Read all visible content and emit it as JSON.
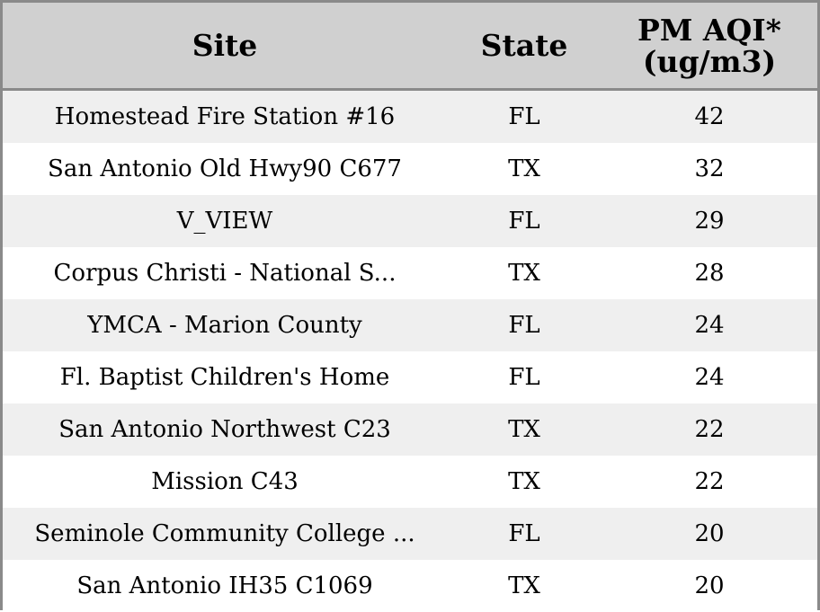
{
  "chart_data": {
    "type": "table",
    "columns": [
      "Site",
      "State",
      "PM AQI*",
      "(ug/m3)"
    ],
    "rows": [
      [
        "Homestead Fire Station #16",
        "FL",
        "42"
      ],
      [
        "San Antonio Old Hwy90 C677",
        "TX",
        "32"
      ],
      [
        "V_VIEW",
        "FL",
        "29"
      ],
      [
        "Corpus Christi - National S...",
        "TX",
        "28"
      ],
      [
        "YMCA - Marion County",
        "FL",
        "24"
      ],
      [
        "Fl. Baptist Children's Home",
        "FL",
        "24"
      ],
      [
        "San Antonio Northwest C23",
        "TX",
        "22"
      ],
      [
        "Mission C43",
        "TX",
        "22"
      ],
      [
        "Seminole Community College ...",
        "FL",
        "20"
      ],
      [
        "San Antonio IH35 C1069",
        "TX",
        "20"
      ]
    ]
  }
}
